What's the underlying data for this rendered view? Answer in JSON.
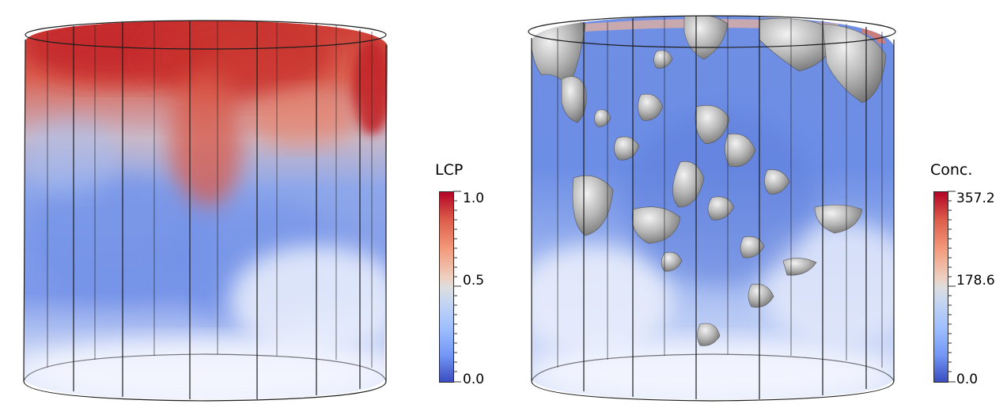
{
  "left_panel": {
    "colorbar": {
      "title": "LCP",
      "ticks": [
        {
          "label": "1.0",
          "value": 1.0
        },
        {
          "label": "0.5",
          "value": 0.5
        },
        {
          "label": "0.0",
          "value": 0.0
        }
      ],
      "min": 0.0,
      "max": 1.0,
      "colormap": "coolwarm"
    }
  },
  "right_panel": {
    "colorbar": {
      "title": "Conc.",
      "ticks": [
        {
          "label": "357.2",
          "value": 357.2
        },
        {
          "label": "178.6",
          "value": 178.6
        },
        {
          "label": "0.0",
          "value": 0.0
        }
      ],
      "min": 0.0,
      "max": 357.2,
      "colormap": "coolwarm"
    }
  },
  "colors": {
    "high": "#b40426",
    "mid": "#dddddd",
    "low": "#3b4cc0",
    "isosurface": "#a8a8a8"
  }
}
